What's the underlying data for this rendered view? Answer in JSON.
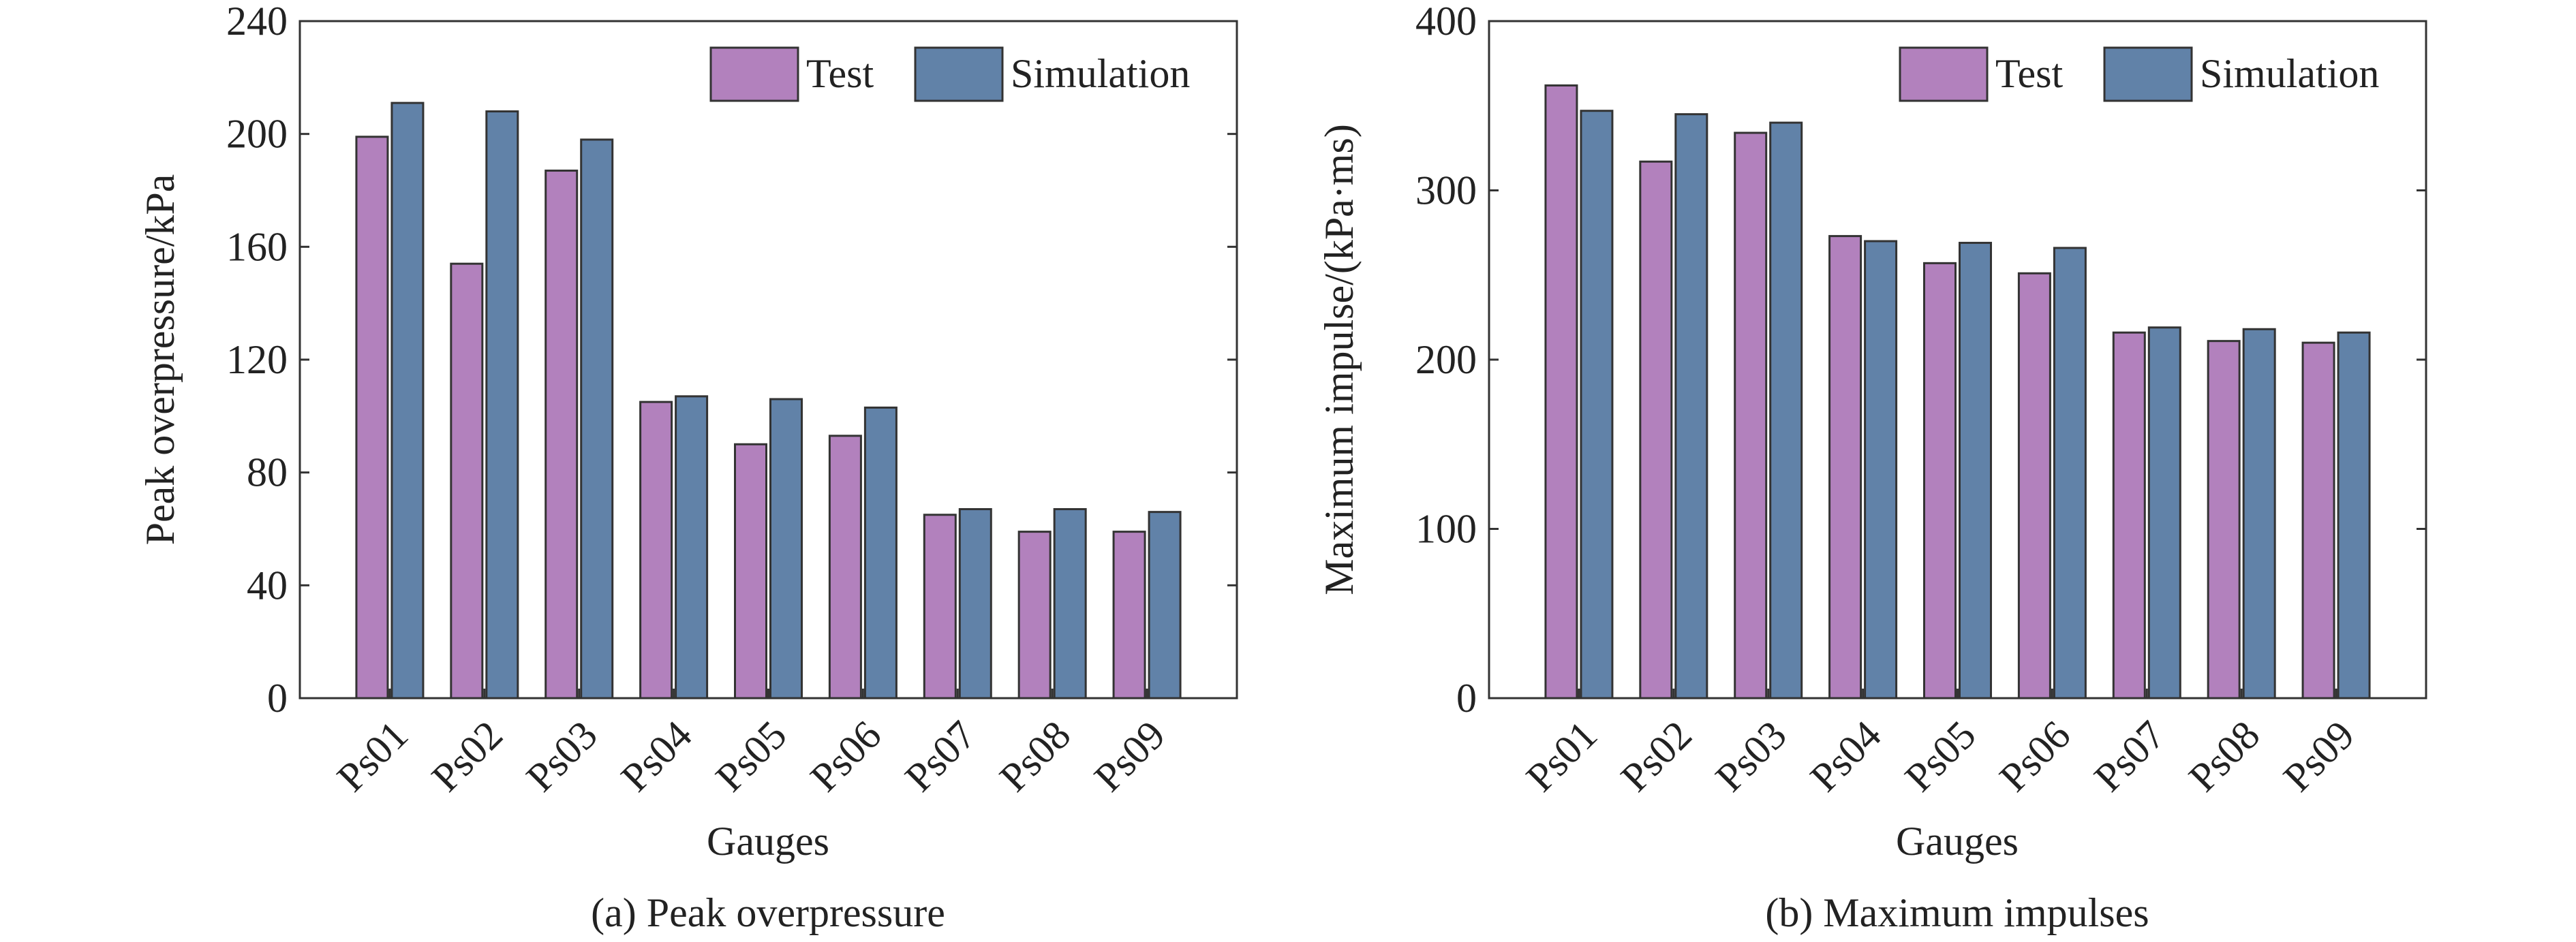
{
  "chart_data": [
    {
      "type": "bar",
      "caption": "(a) Peak overpressure",
      "xlabel": "Gauges",
      "ylabel": "Peak overpressure/kPa",
      "ylim": [
        0,
        240
      ],
      "yticks": [
        "0",
        "40",
        "80",
        "120",
        "160",
        "200",
        "240"
      ],
      "categories": [
        "Ps01",
        "Ps02",
        "Ps03",
        "Ps04",
        "Ps05",
        "Ps06",
        "Ps07",
        "Ps08",
        "Ps09"
      ],
      "series": [
        {
          "name": "Test",
          "color": "#b281bd",
          "values": [
            199,
            154,
            187,
            105,
            90,
            93,
            65,
            59,
            59
          ]
        },
        {
          "name": "Simulation",
          "color": "#6182a8",
          "values": [
            211,
            208,
            198,
            107,
            106,
            103,
            67,
            67,
            66
          ]
        }
      ],
      "legend": "top-right",
      "grid": false
    },
    {
      "type": "bar",
      "caption": "(b) Maximum impulses",
      "xlabel": "Gauges",
      "ylabel": "Maximum impulse/(kPa·ms)",
      "ylim": [
        0,
        400
      ],
      "yticks": [
        "0",
        "100",
        "200",
        "300",
        "400"
      ],
      "categories": [
        "Ps01",
        "Ps02",
        "Ps03",
        "Ps04",
        "Ps05",
        "Ps06",
        "Ps07",
        "Ps08",
        "Ps09"
      ],
      "series": [
        {
          "name": "Test",
          "color": "#b281bd",
          "values": [
            362,
            317,
            334,
            273,
            257,
            251,
            216,
            211,
            210
          ]
        },
        {
          "name": "Simulation",
          "color": "#6182a8",
          "values": [
            347,
            345,
            340,
            270,
            269,
            266,
            219,
            218,
            216
          ]
        }
      ],
      "legend": "top-right",
      "grid": false
    }
  ]
}
